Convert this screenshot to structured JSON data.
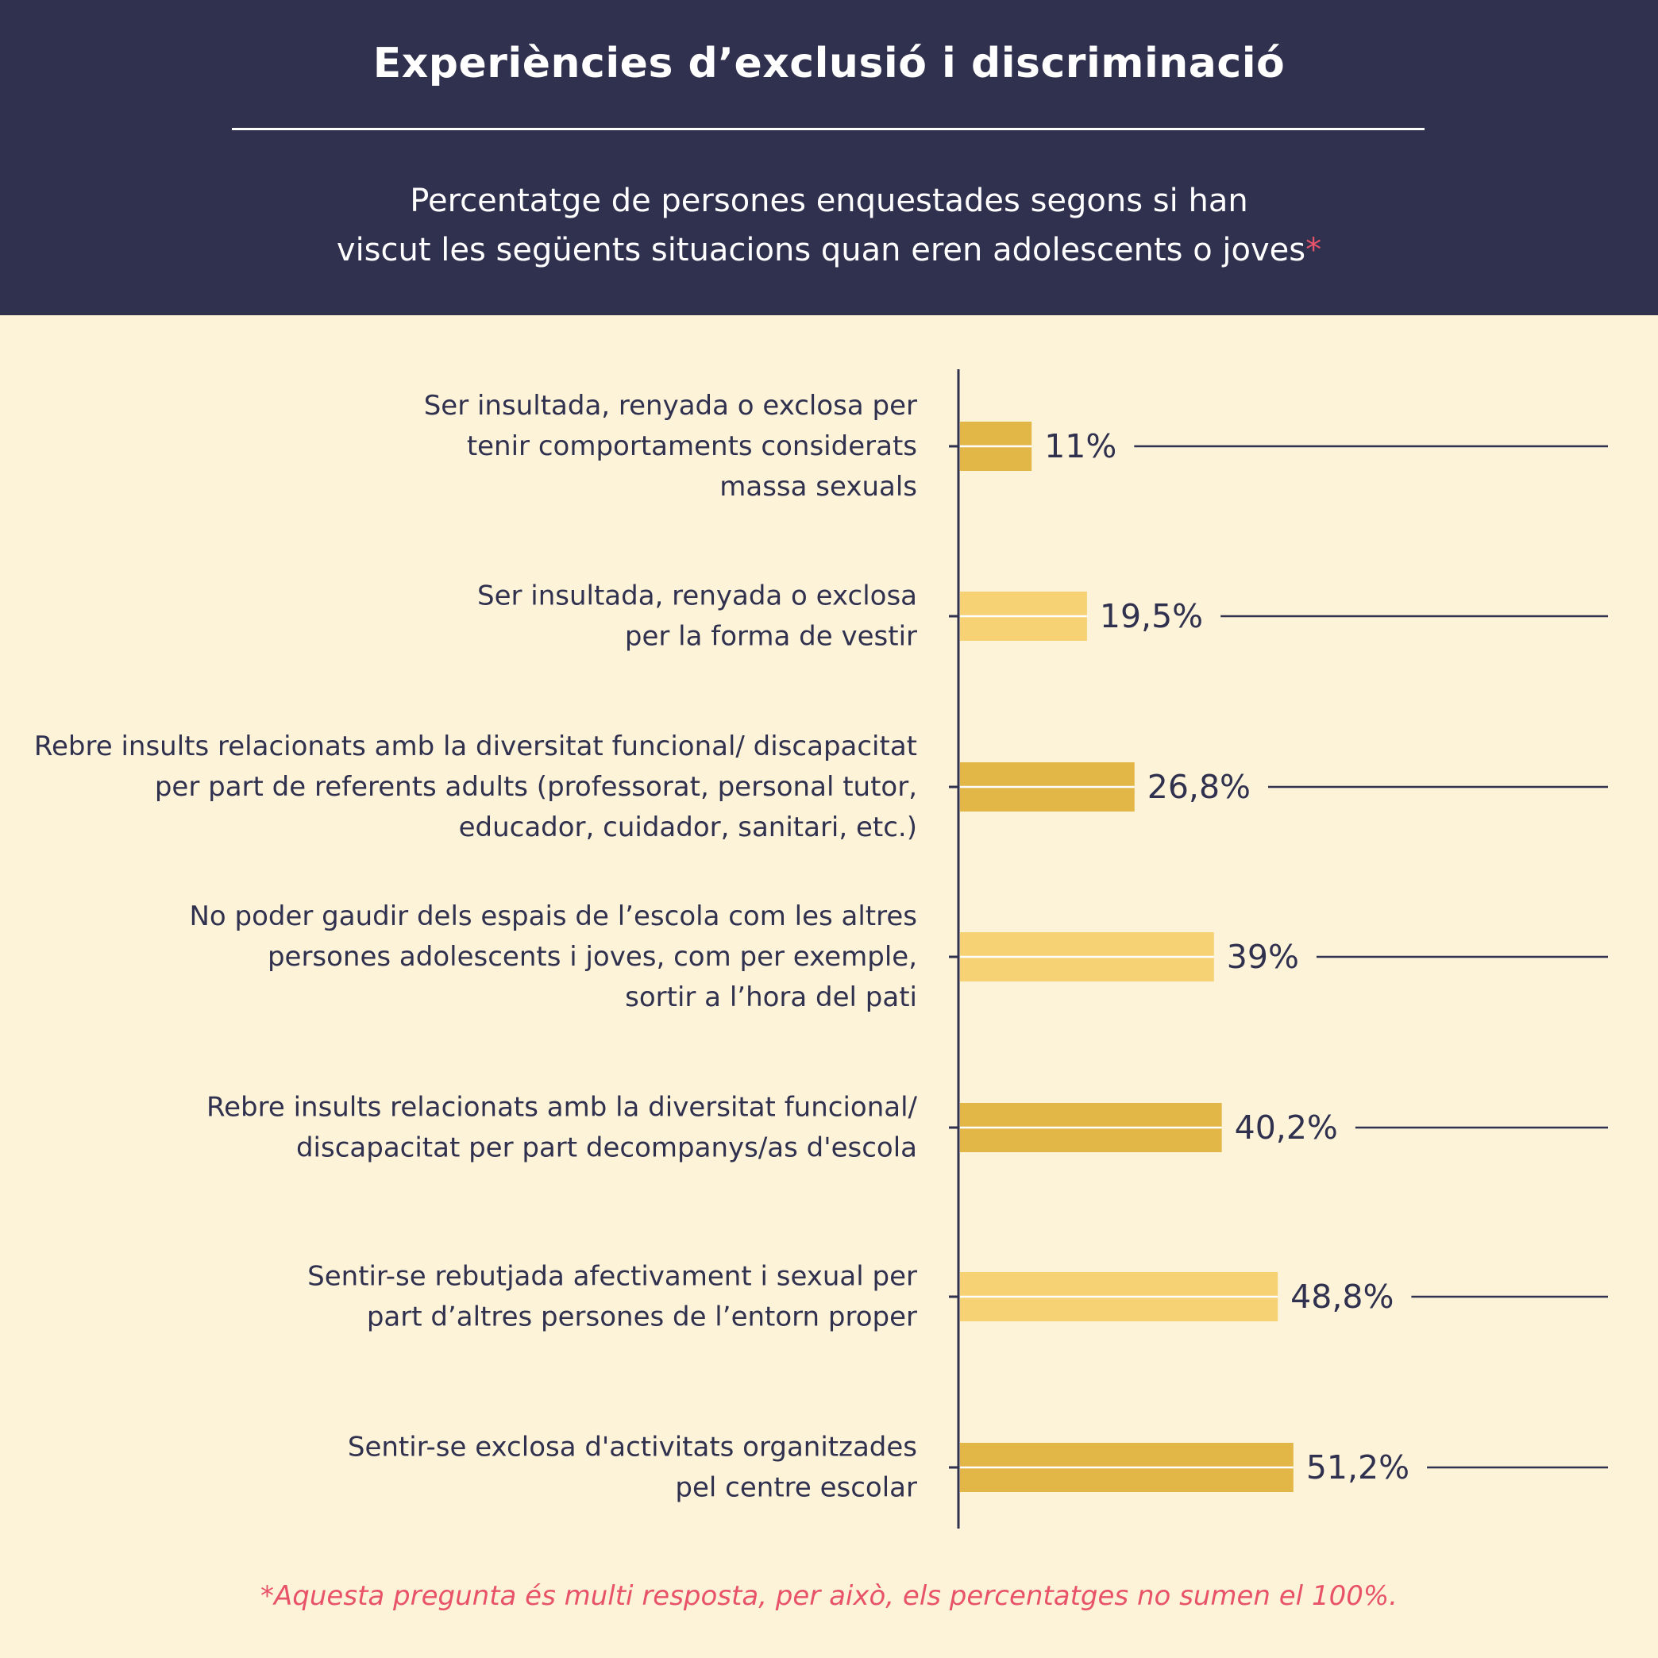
{
  "header": {
    "title": "Experiències d’exclusió i discriminació",
    "subtitle_line1": "Percentatge de persones enquestades segons si han",
    "subtitle_line2": "viscut les següents situacions quan eren adolescents o joves",
    "subtitle_asterisk": "*"
  },
  "footnote": "*Aquesta pregunta és multi resposta, per això, els percentatges no sumen el 100%.",
  "colors": {
    "header_bg": "#30304f",
    "page_bg": "#fcf3d8",
    "bar_dark": "#e3b648",
    "bar_light": "#f6d274",
    "accent": "#e8536a",
    "text": "#30304f"
  },
  "chart_data": {
    "type": "bar",
    "orientation": "horizontal",
    "xlim": [
      0,
      100
    ],
    "grid": false,
    "categories": [
      [
        "Ser insultada, renyada o exclosa per",
        "tenir comportaments considerats",
        "massa sexuals"
      ],
      [
        "Ser insultada, renyada o exclosa",
        "per la forma de vestir"
      ],
      [
        "Rebre insults relacionats amb la diversitat funcional/ discapacitat",
        "per part de referents adults (professorat, personal tutor,",
        "educador, cuidador, sanitari, etc.)"
      ],
      [
        "No poder gaudir dels espais de l’escola com les altres",
        "persones adolescents i joves, com per exemple,",
        "sortir a l’hora del pati"
      ],
      [
        "Rebre insults relacionats amb la diversitat funcional/",
        "discapacitat per part decompanys/as d'escola"
      ],
      [
        "Sentir-se rebutjada afectivament i sexual per",
        "part d’altres persones de l’entorn proper"
      ],
      [
        "Sentir-se exclosa d'activitats organitzades",
        "pel centre escolar"
      ]
    ],
    "values": [
      11,
      19.5,
      26.8,
      39,
      40.2,
      48.8,
      51.2
    ],
    "value_labels": [
      "11%",
      "19,5%",
      "26,8%",
      "39%",
      "40,2%",
      "48,8%",
      "51,2%"
    ]
  }
}
